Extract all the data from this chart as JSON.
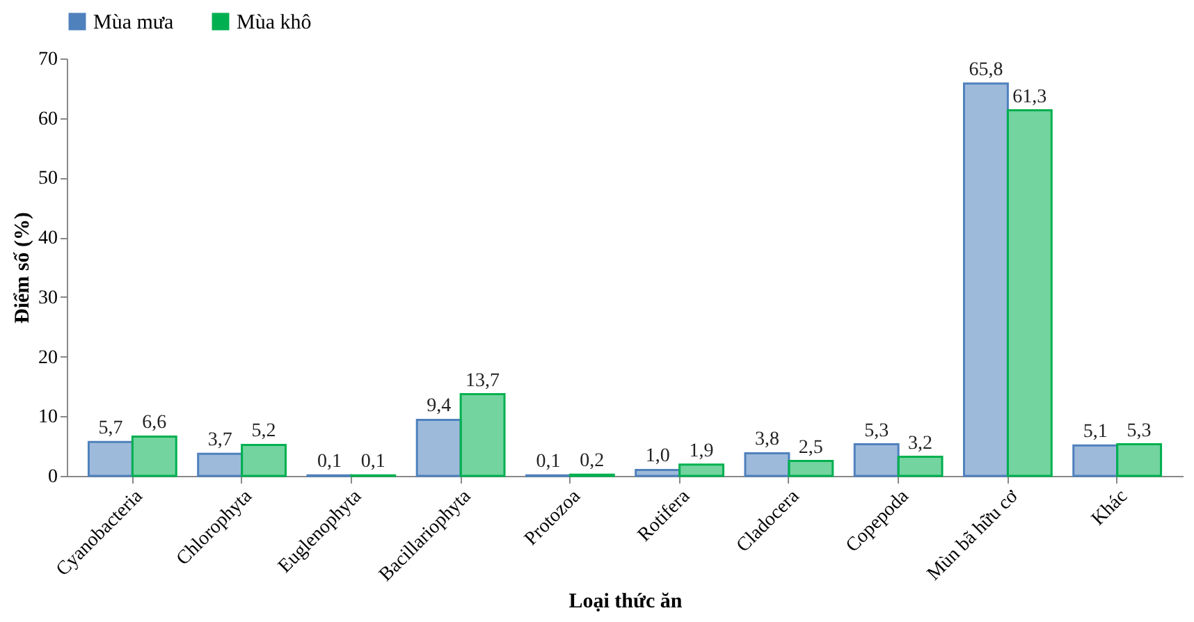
{
  "chart_data": {
    "type": "bar",
    "xlabel": "Loại thức ăn",
    "ylabel": "Điểm số (%)",
    "categories": [
      "Cyanobacteria",
      "Chlorophyta",
      "Euglenophyta",
      "Bacillariophyta",
      "Protozoa",
      "Rotifera",
      "Cladocera",
      "Copepoda",
      "Mùn bã hữu cơ",
      "Khác"
    ],
    "series": [
      {
        "name": "Mùa mưa",
        "color": "#4f81bd",
        "values": [
          5.7,
          3.7,
          0.1,
          9.4,
          0.1,
          1.0,
          3.8,
          5.3,
          65.8,
          5.1
        ],
        "value_labels": [
          "5,7",
          "3,7",
          "0,1",
          "9,4",
          "0,1",
          "1,0",
          "3,8",
          "5,3",
          "65,8",
          "5,1"
        ]
      },
      {
        "name": "Mùa khô",
        "color": "#00b050",
        "values": [
          6.6,
          5.2,
          0.1,
          13.7,
          0.2,
          1.9,
          2.5,
          3.2,
          61.3,
          5.3
        ],
        "value_labels": [
          "6,6",
          "5,2",
          "0,1",
          "13,7",
          "0,2",
          "1,9",
          "2,5",
          "3,2",
          "61,3",
          "5,3"
        ]
      }
    ],
    "ylim": [
      0,
      70
    ],
    "yticks": [
      0,
      10,
      20,
      30,
      40,
      50,
      60,
      70
    ],
    "grid": false,
    "legend": "top"
  }
}
